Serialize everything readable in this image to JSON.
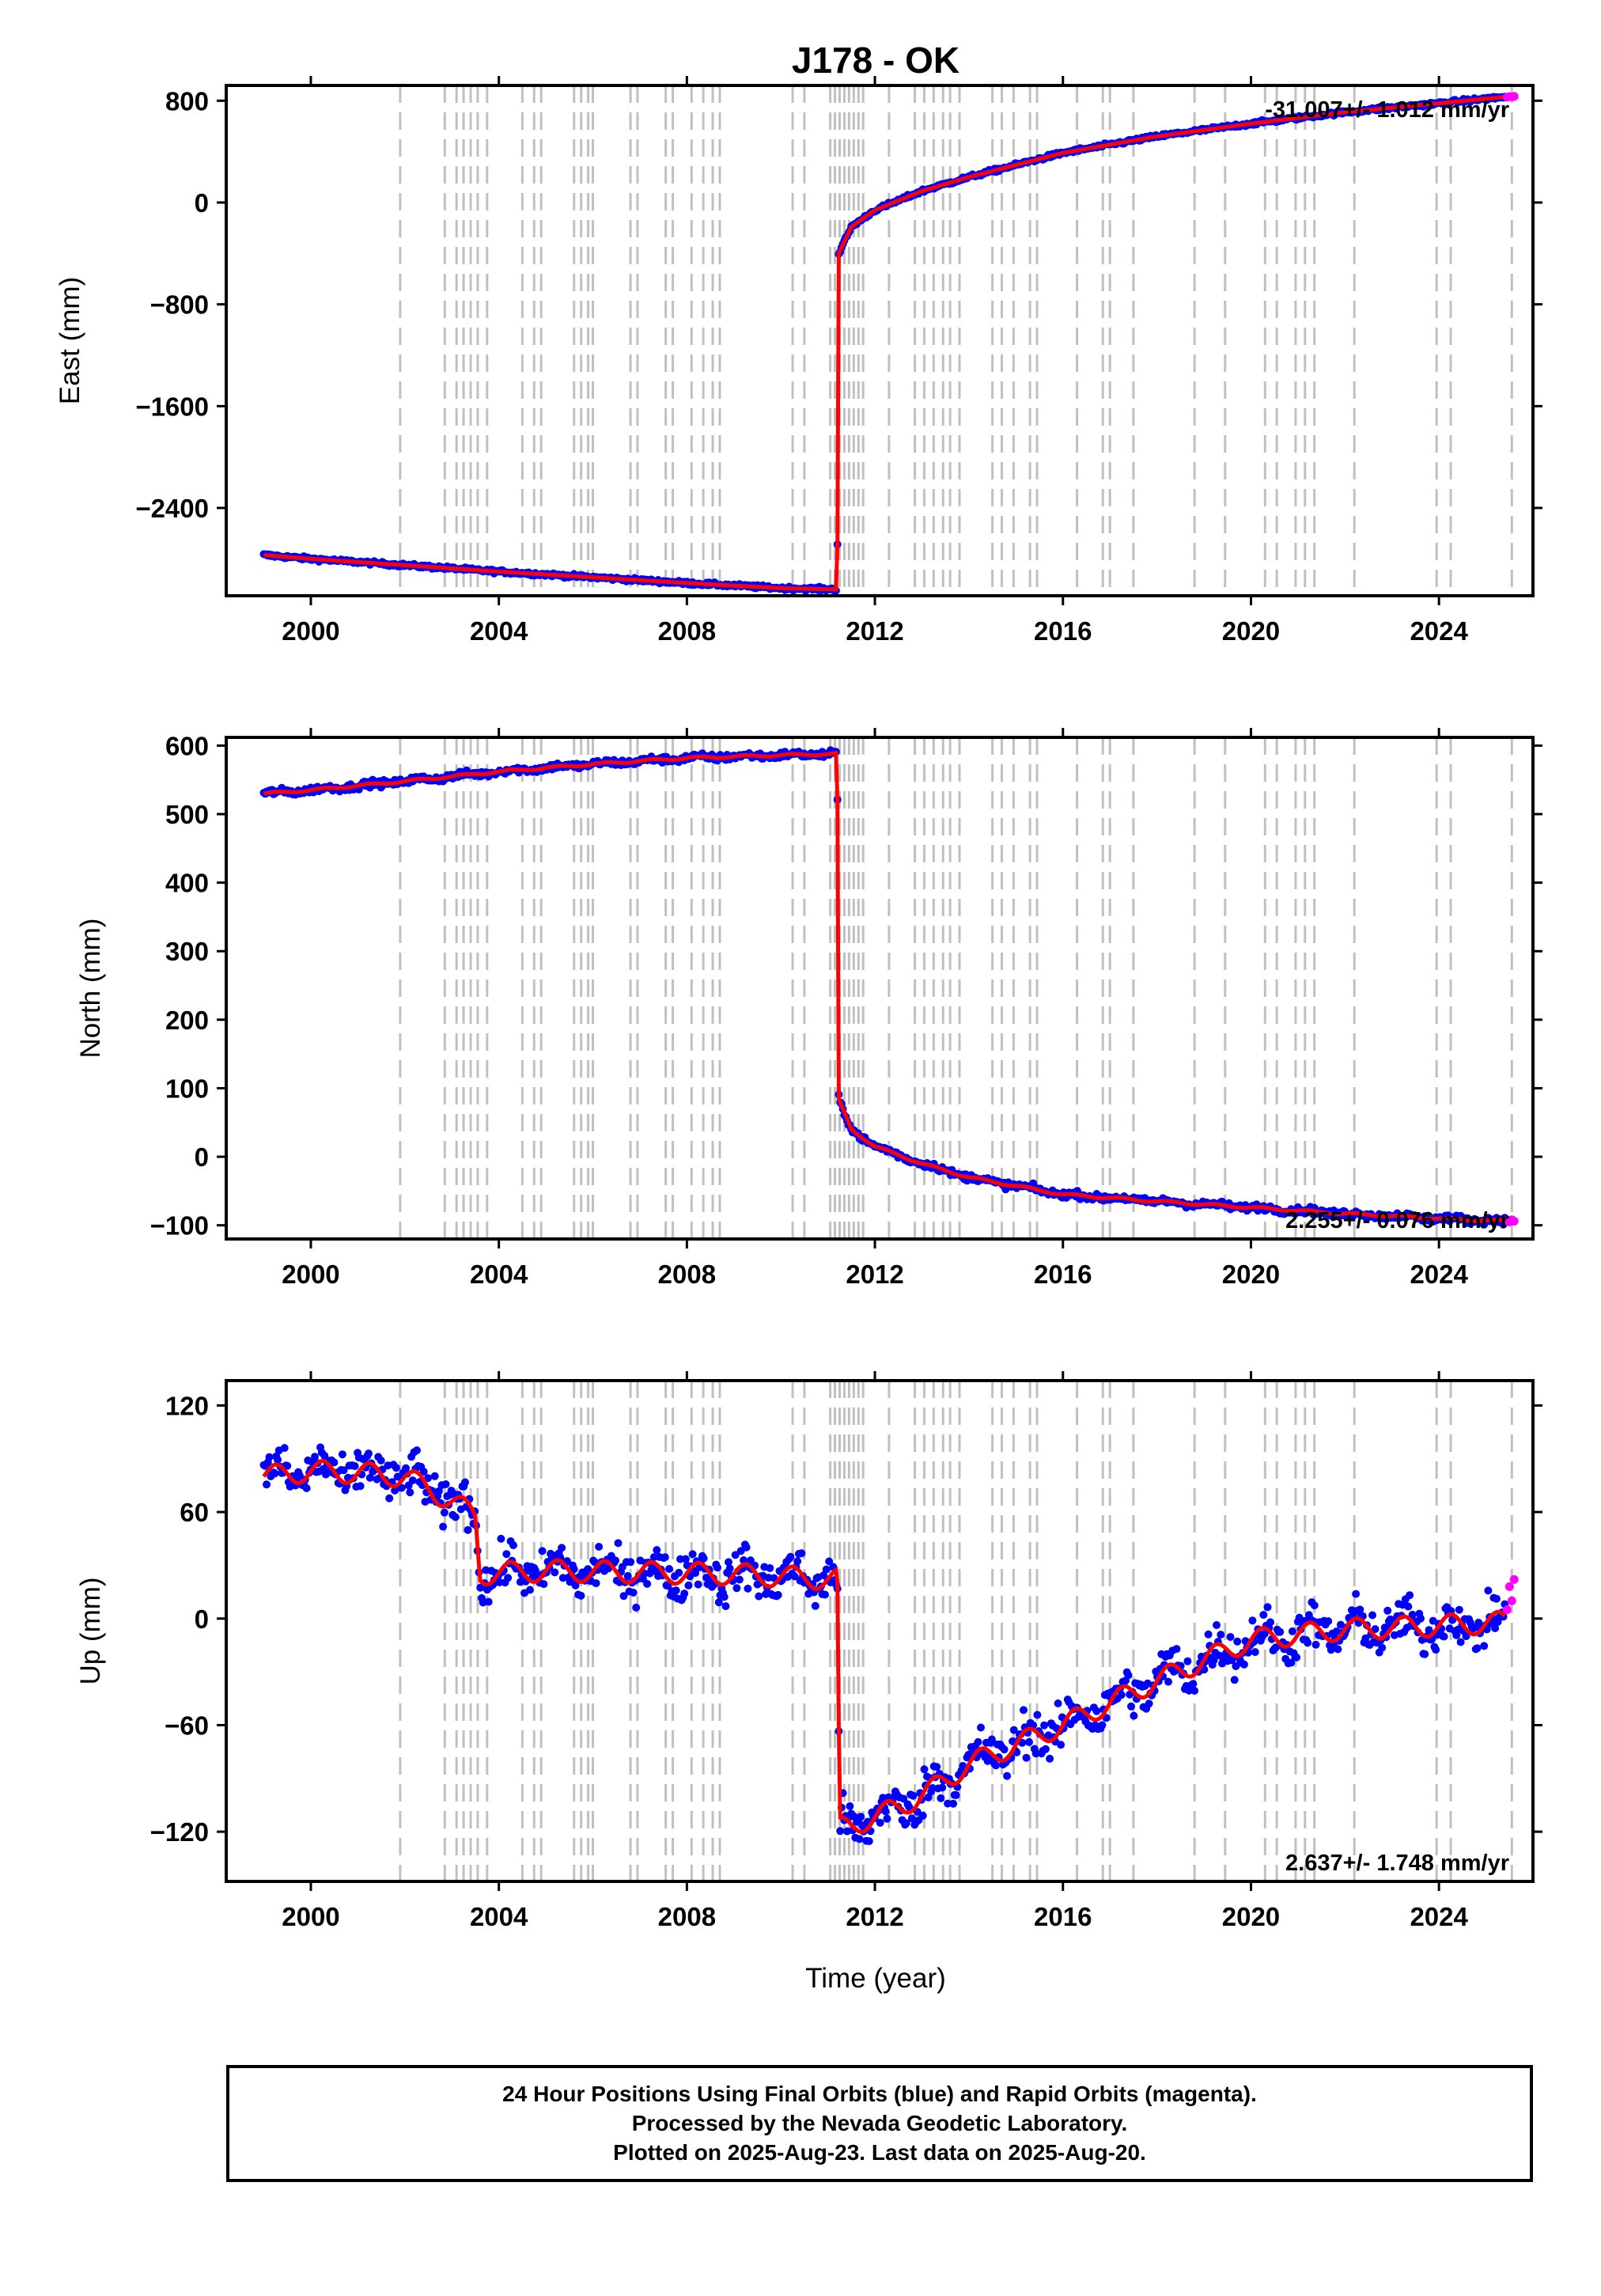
{
  "title": "J178 - OK",
  "xlabel": "Time (year)",
  "footer": [
    "24 Hour Positions Using Final Orbits (blue) and Rapid Orbits (magenta).",
    "Processed by the Nevada Geodetic Laboratory.",
    "Plotted on 2025-Aug-23. Last data on 2025-Aug-20."
  ],
  "colors": {
    "final_orbits": "#0000ff",
    "rapid_orbits": "#ff00ff",
    "model": "#ff0000",
    "event_lines": "#c0c0c0"
  },
  "chart_data": [
    {
      "type": "scatter",
      "ylabel": "East (mm)",
      "xlim": [
        1998.2,
        2026.0
      ],
      "ylim": [
        -3090,
        920
      ],
      "x_ticks": [
        2000,
        2004,
        2008,
        2012,
        2016,
        2020,
        2024
      ],
      "y_ticks": [
        800,
        0,
        -800,
        -1600,
        -2400
      ],
      "y_tick_labels": [
        "800",
        "0",
        "−800",
        "−1600",
        "−2400"
      ],
      "rate_label": "-31.007+/- 1.012 mm/yr",
      "rate_label_position": "top-right",
      "series": [
        {
          "role": "final",
          "x": [
            1999.0,
            2000.0,
            2002.0,
            2004.0,
            2006.0,
            2008.0,
            2010.0,
            2011.2,
            2011.22,
            2011.5,
            2012.0,
            2013.0,
            2014.0,
            2016.0,
            2018.0,
            2020.0,
            2022.0,
            2024.0,
            2025.4
          ],
          "y": [
            -2770,
            -2800,
            -2850,
            -2900,
            -2945,
            -2990,
            -3030,
            -3040,
            -410,
            -190,
            -60,
            90,
            200,
            390,
            520,
            620,
            710,
            780,
            830
          ]
        },
        {
          "role": "rapid",
          "x": [
            2025.45,
            2025.5,
            2025.55,
            2025.6
          ],
          "y": [
            828,
            832,
            830,
            834
          ]
        }
      ]
    },
    {
      "type": "scatter",
      "ylabel": "North (mm)",
      "xlim": [
        1998.2,
        2026.0
      ],
      "ylim": [
        -120,
        612
      ],
      "x_ticks": [
        2000,
        2004,
        2008,
        2012,
        2016,
        2020,
        2024
      ],
      "y_ticks": [
        600,
        500,
        400,
        300,
        200,
        100,
        0,
        -100
      ],
      "y_tick_labels": [
        "600",
        "500",
        "400",
        "300",
        "200",
        "100",
        "0",
        "−100"
      ],
      "rate_label": "2.255+/- 0.076 mm/yr",
      "rate_label_position": "bottom-right",
      "series": [
        {
          "role": "final",
          "x": [
            1999.0,
            2000.0,
            2002.0,
            2004.0,
            2006.0,
            2008.0,
            2010.0,
            2011.2,
            2011.22,
            2011.5,
            2012.0,
            2013.0,
            2014.0,
            2016.0,
            2018.0,
            2020.0,
            2022.0,
            2024.0,
            2025.4
          ],
          "y": [
            530,
            535,
            548,
            562,
            573,
            582,
            586,
            588,
            85,
            40,
            15,
            -10,
            -30,
            -55,
            -65,
            -74,
            -83,
            -90,
            -94
          ]
        },
        {
          "role": "rapid",
          "x": [
            2025.45,
            2025.5,
            2025.55,
            2025.6
          ],
          "y": [
            -93,
            -95,
            -92,
            -94
          ]
        }
      ]
    },
    {
      "type": "scatter",
      "ylabel": "Up (mm)",
      "xlim": [
        1998.2,
        2026.0
      ],
      "ylim": [
        -148,
        134
      ],
      "x_ticks": [
        2000,
        2004,
        2008,
        2012,
        2016,
        2020,
        2024
      ],
      "y_ticks": [
        120,
        60,
        0,
        -60,
        -120
      ],
      "y_tick_labels": [
        "120",
        "60",
        "0",
        "−60",
        "−120"
      ],
      "rate_label": "2.637+/- 1.748 mm/yr",
      "rate_label_position": "bottom-right",
      "series": [
        {
          "role": "final",
          "x": [
            1999.0,
            2000.0,
            2001.0,
            2002.0,
            2003.0,
            2003.5,
            2003.6,
            2005.0,
            2007.0,
            2009.0,
            2011.2,
            2011.25,
            2012.0,
            2013.0,
            2014.0,
            2016.0,
            2018.0,
            2020.0,
            2022.0,
            2024.0,
            2025.4
          ],
          "y": [
            80,
            83,
            82,
            80,
            66,
            58,
            25,
            27,
            26,
            25,
            22,
            -118,
            -112,
            -100,
            -82,
            -60,
            -35,
            -12,
            -6,
            -4,
            -2
          ]
        },
        {
          "role": "rapid",
          "x": [
            2025.45,
            2025.5,
            2025.55,
            2025.6
          ],
          "y": [
            5,
            18,
            10,
            22
          ]
        }
      ]
    }
  ],
  "event_lines_x": [
    2001.9,
    2002.85,
    2003.1,
    2003.25,
    2003.4,
    2003.55,
    2003.75,
    2004.5,
    2004.75,
    2004.9,
    2005.6,
    2005.75,
    2005.9,
    2006.0,
    2006.8,
    2006.95,
    2007.55,
    2007.7,
    2008.1,
    2008.35,
    2008.55,
    2008.7,
    2010.25,
    2010.5,
    2011.05,
    2011.15,
    2011.25,
    2011.35,
    2011.45,
    2011.55,
    2011.65,
    2011.75,
    2012.3,
    2012.85,
    2013.05,
    2013.25,
    2013.45,
    2013.6,
    2013.8,
    2014.5,
    2014.7,
    2014.95,
    2015.3,
    2015.45,
    2016.3,
    2016.85,
    2017.0,
    2017.5,
    2018.8,
    2019.45,
    2020.3,
    2020.55,
    2020.95,
    2021.15,
    2021.35,
    2022.2,
    2023.95,
    2024.25,
    2025.55
  ]
}
